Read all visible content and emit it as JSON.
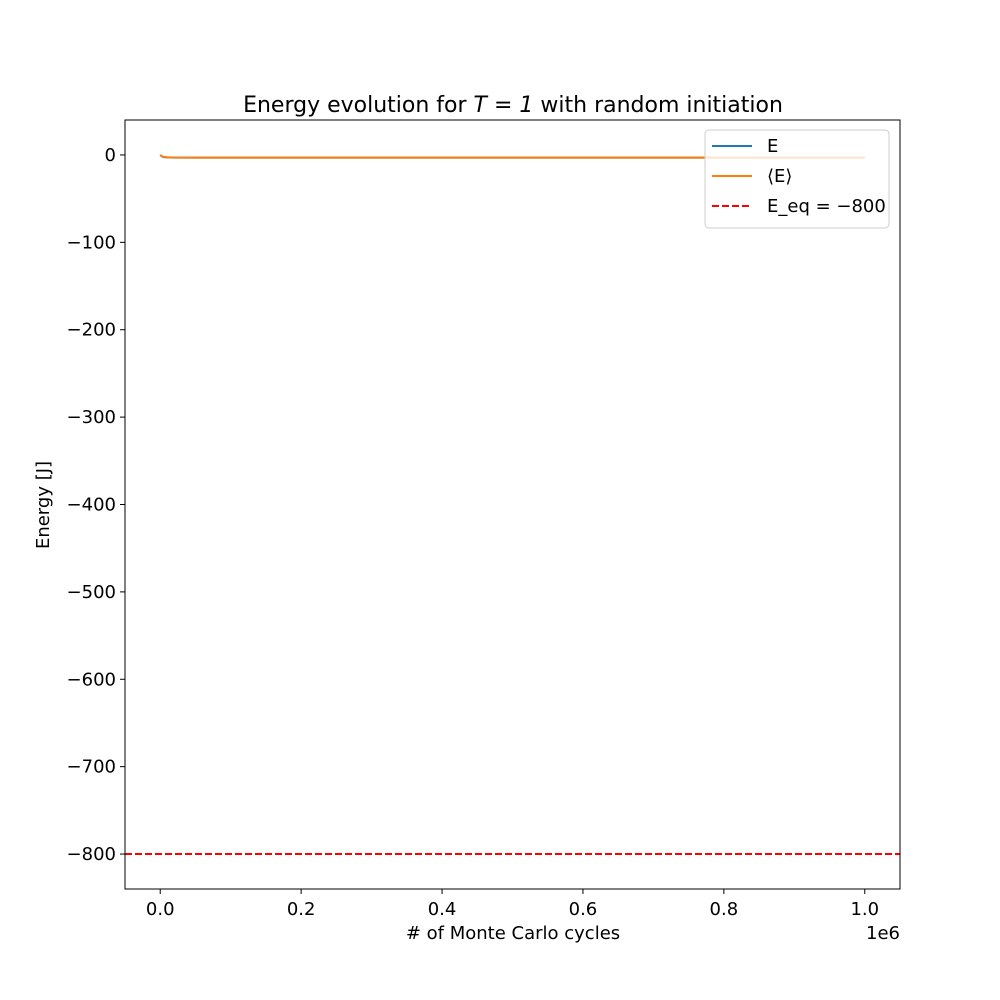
{
  "chart_data": {
    "type": "line",
    "title": "Energy evolution for ",
    "title_math": "T = 1",
    "title_suffix": " with random initiation",
    "xlabel": "# of Monte Carlo cycles",
    "ylabel": "Energy [J]",
    "x_offset_text": "1e6",
    "xlim": [
      -0.05,
      1.05
    ],
    "ylim": [
      -840,
      40
    ],
    "x_ticks": [
      0.0,
      0.2,
      0.4,
      0.6,
      0.8,
      1.0
    ],
    "x_tick_labels": [
      "0.0",
      "0.2",
      "0.4",
      "0.6",
      "0.8",
      "1.0"
    ],
    "y_ticks": [
      0,
      -100,
      -200,
      -300,
      -400,
      -500,
      -600,
      -700,
      -800
    ],
    "y_tick_labels": [
      "0",
      "−100",
      "−200",
      "−300",
      "−400",
      "−500",
      "−600",
      "−700",
      "−800"
    ],
    "grid": false,
    "legend_placement": "top-right",
    "series": [
      {
        "name": "E",
        "color": "#1f77b4",
        "x": [
          0.0,
          0.002,
          0.005,
          0.01,
          0.02,
          0.05,
          0.1,
          0.3,
          0.5,
          0.7,
          0.9,
          1.0
        ],
        "y": [
          0,
          -1.5,
          -2.5,
          -2.8,
          -3,
          -3,
          -3,
          -3,
          -3,
          -3,
          -3,
          -3
        ]
      },
      {
        "name": "⟨E⟩",
        "color": "#ff7f0e",
        "x": [
          0.0,
          0.002,
          0.005,
          0.01,
          0.02,
          0.05,
          0.1,
          0.3,
          0.5,
          0.7,
          0.9,
          1.0
        ],
        "y": [
          0,
          -1.2,
          -2.2,
          -2.6,
          -2.9,
          -3,
          -3,
          -3,
          -3,
          -3,
          -3,
          -3
        ]
      }
    ],
    "hlines": [
      {
        "name": "E_eq = −800",
        "y": -800,
        "color": "#ff0000",
        "style": "dashed"
      }
    ]
  }
}
